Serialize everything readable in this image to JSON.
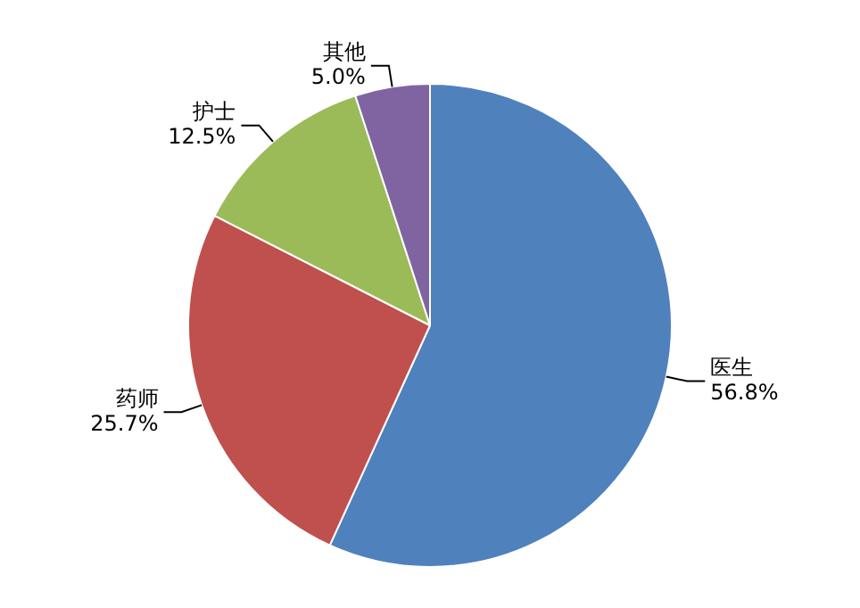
{
  "chart_data": {
    "type": "pie",
    "categories": [
      "医生",
      "药师",
      "护士",
      "其他"
    ],
    "values": [
      56.8,
      25.7,
      12.5,
      5.0
    ],
    "colors": [
      "#4f81bd",
      "#c0504d",
      "#9bbb59",
      "#8064a2"
    ],
    "value_labels": [
      "56.8%",
      "25.7%",
      "12.5%",
      "5.0%"
    ]
  }
}
